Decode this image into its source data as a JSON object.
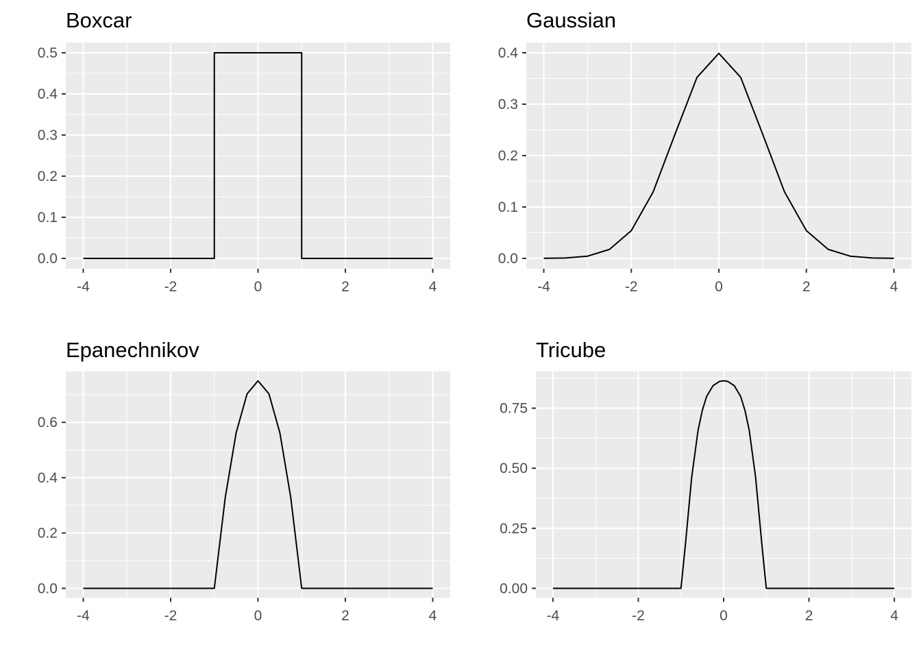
{
  "chart_data": [
    {
      "type": "line",
      "title": "Boxcar",
      "xlabel": "",
      "ylabel": "",
      "xlim": [
        -4,
        4
      ],
      "ylim": [
        0,
        0.5
      ],
      "xticks": [
        "-4",
        "-2",
        "0",
        "2",
        "4"
      ],
      "yticks": [
        "0.0",
        "0.1",
        "0.2",
        "0.3",
        "0.4",
        "0.5"
      ],
      "grid": true,
      "series": [
        {
          "x": [
            -4,
            -1,
            -1,
            1,
            1,
            4
          ],
          "y": [
            0,
            0,
            0.5,
            0.5,
            0,
            0
          ]
        }
      ]
    },
    {
      "type": "line",
      "title": "Gaussian",
      "xlabel": "",
      "ylabel": "",
      "xlim": [
        -4,
        4
      ],
      "ylim": [
        0,
        0.4
      ],
      "xticks": [
        "-4",
        "-2",
        "0",
        "2",
        "4"
      ],
      "yticks": [
        "0.0",
        "0.1",
        "0.2",
        "0.3",
        "0.4"
      ],
      "grid": true,
      "series": [
        {
          "x": [
            -4,
            -3.5,
            -3,
            -2.5,
            -2,
            -1.5,
            -1,
            -0.5,
            0,
            0.5,
            1,
            1.5,
            2,
            2.5,
            3,
            3.5,
            4
          ],
          "y": [
            0.0001,
            0.0009,
            0.0044,
            0.0175,
            0.054,
            0.1295,
            0.242,
            0.3521,
            0.3989,
            0.3521,
            0.242,
            0.1295,
            0.054,
            0.0175,
            0.0044,
            0.0009,
            0.0001
          ]
        }
      ]
    },
    {
      "type": "line",
      "title": "Epanechnikov",
      "xlabel": "",
      "ylabel": "",
      "xlim": [
        -4,
        4
      ],
      "ylim": [
        0,
        0.75
      ],
      "xticks": [
        "-4",
        "-2",
        "0",
        "2",
        "4"
      ],
      "yticks": [
        "0.0",
        "0.2",
        "0.4",
        "0.6"
      ],
      "grid": true,
      "series": [
        {
          "x": [
            -4,
            -1,
            -0.75,
            -0.5,
            -0.25,
            0,
            0.25,
            0.5,
            0.75,
            1,
            4
          ],
          "y": [
            0,
            0,
            0.328,
            0.5625,
            0.703,
            0.75,
            0.703,
            0.5625,
            0.328,
            0,
            0
          ]
        }
      ]
    },
    {
      "type": "line",
      "title": "Tricube",
      "xlabel": "",
      "ylabel": "",
      "xlim": [
        -4,
        4
      ],
      "ylim": [
        0,
        0.864
      ],
      "xticks": [
        "-4",
        "-2",
        "0",
        "2",
        "4"
      ],
      "yticks": [
        "0.00",
        "0.25",
        "0.50",
        "0.75"
      ],
      "grid": true,
      "series": [
        {
          "x": [
            -4,
            -1,
            -0.9,
            -0.75,
            -0.6,
            -0.5,
            -0.4,
            -0.25,
            -0.1,
            0,
            0.1,
            0.25,
            0.4,
            0.5,
            0.6,
            0.75,
            0.9,
            1,
            4
          ],
          "y": [
            0,
            0,
            0.1745,
            0.4606,
            0.6578,
            0.7408,
            0.7984,
            0.8437,
            0.8614,
            0.8642,
            0.8614,
            0.8437,
            0.7984,
            0.7408,
            0.6578,
            0.4606,
            0.1745,
            0,
            0
          ]
        }
      ]
    }
  ]
}
